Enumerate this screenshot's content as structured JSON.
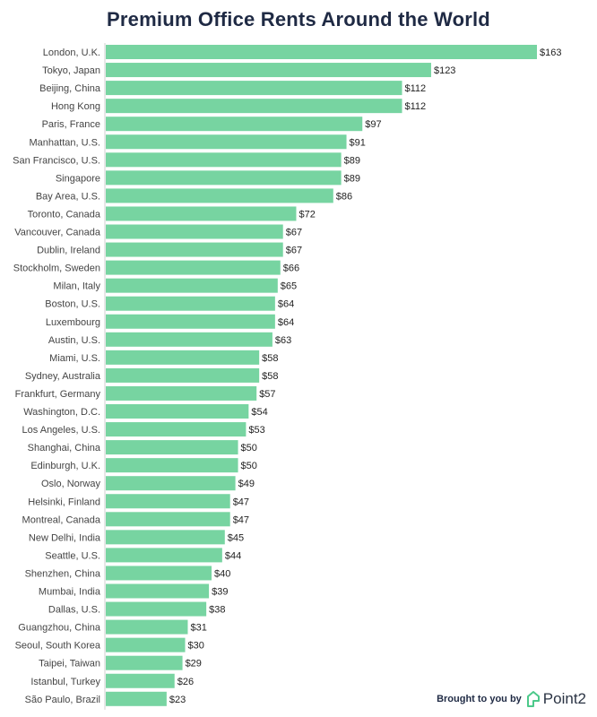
{
  "chart_data": {
    "type": "bar",
    "orientation": "horizontal",
    "title": "Premium Office Rents Around the World",
    "value_prefix": "$",
    "bar_color": "#77d4a1",
    "xlim": [
      0,
      163
    ],
    "categories": [
      "London, U.K.",
      "Tokyo, Japan",
      "Beijing, China",
      "Hong Kong",
      "Paris, France",
      "Manhattan, U.S.",
      "San Francisco, U.S.",
      "Singapore",
      "Bay Area, U.S.",
      "Toronto, Canada",
      "Vancouver, Canada",
      "Dublin, Ireland",
      "Stockholm, Sweden",
      "Milan, Italy",
      "Boston, U.S.",
      "Luxembourg",
      "Austin, U.S.",
      "Miami, U.S.",
      "Sydney, Australia",
      "Frankfurt, Germany",
      "Washington, D.C.",
      "Los Angeles, U.S.",
      "Shanghai, China",
      "Edinburgh, U.K.",
      "Oslo, Norway",
      "Helsinki, Finland",
      "Montreal, Canada",
      "New Delhi, India",
      "Seattle, U.S.",
      "Shenzhen, China",
      "Mumbai, India",
      "Dallas, U.S.",
      "Guangzhou, China",
      "Seoul, South Korea",
      "Taipei, Taiwan",
      "Istanbul, Turkey",
      "São Paulo, Brazil"
    ],
    "values": [
      163,
      123,
      112,
      112,
      97,
      91,
      89,
      89,
      86,
      72,
      67,
      67,
      66,
      65,
      64,
      64,
      63,
      58,
      58,
      57,
      54,
      53,
      50,
      50,
      49,
      47,
      47,
      45,
      44,
      40,
      39,
      38,
      31,
      30,
      29,
      26,
      23
    ]
  },
  "credit": {
    "text": "Brought to you by",
    "brand": "Point2",
    "brand_icon": "point2-logo-icon",
    "brand_color": "#4cc98a"
  }
}
